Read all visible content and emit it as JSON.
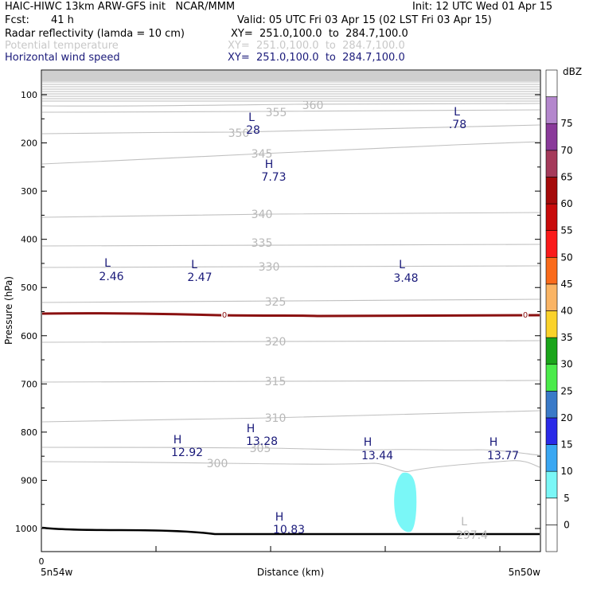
{
  "header": {
    "title": "HAIC-HIWC 13km ARW-GFS init   NCAR/MMM",
    "init": "Init: 12 UTC Wed 01 Apr 15",
    "fcst_label": "Fcst:",
    "fcst_value": "41 h",
    "valid": "Valid: 05 UTC Fri 03 Apr 15 (02 LST Fri 03 Apr 15)",
    "fields": [
      {
        "name": "Radar reflectivity (lamda = 10 cm)",
        "xy": "XY=  251.0,100.0  to  284.7,100.0",
        "color": "#000000"
      },
      {
        "name": "Potential temperature",
        "xy": "XY=  251.0,100.0  to  284.7,100.0",
        "color": "#c8c8c8"
      },
      {
        "name": "Horizontal wind speed",
        "xy": "XY=  251.0,100.0  to  284.7,100.0",
        "color": "#1a1a7a"
      }
    ]
  },
  "chart_data": {
    "type": "cross-section",
    "ylabel": "Pressure (hPa)",
    "xlabel": "Distance (km)",
    "x_tick_label": "0",
    "x_left_label": "5n54w",
    "x_right_label": "5n50w",
    "y_ticks": [
      100,
      200,
      300,
      400,
      500,
      600,
      700,
      800,
      900,
      1000
    ],
    "ylim": [
      1050,
      50
    ],
    "theta_contours": [
      {
        "value": 360,
        "label": "360"
      },
      {
        "value": 355,
        "label": "355"
      },
      {
        "value": 350,
        "label": "350"
      },
      {
        "value": 345,
        "label": "345"
      },
      {
        "value": 340,
        "label": "340"
      },
      {
        "value": 335,
        "label": "335"
      },
      {
        "value": 330,
        "label": "330"
      },
      {
        "value": 325,
        "label": "325"
      },
      {
        "value": 320,
        "label": "320"
      },
      {
        "value": 315,
        "label": "315"
      },
      {
        "value": 310,
        "label": "310"
      },
      {
        "value": 305,
        "label": "305"
      },
      {
        "value": 300,
        "label": "300"
      }
    ],
    "wind_extrema": [
      {
        "type": "L",
        "value": "28"
      },
      {
        "type": "L",
        "value": ".78"
      },
      {
        "type": "H",
        "value": "7.73"
      },
      {
        "type": "L",
        "value": "2.46"
      },
      {
        "type": "L",
        "value": "2.47"
      },
      {
        "type": "L",
        "value": "3.48"
      },
      {
        "type": "H",
        "value": "12.92"
      },
      {
        "type": "H",
        "value": "13.28"
      },
      {
        "type": "H",
        "value": "13.44"
      },
      {
        "type": "H",
        "value": "13.77"
      },
      {
        "type": "H",
        "value": "10.83"
      }
    ],
    "theta_extrema": [
      {
        "type": "L",
        "value": "297.4"
      }
    ],
    "zero_contour_label": "0",
    "colorbar": {
      "units": "dBZ",
      "levels": [
        0,
        5,
        10,
        15,
        20,
        25,
        30,
        35,
        40,
        45,
        50,
        55,
        60,
        65,
        70,
        75
      ],
      "colors": [
        "#ffffff",
        "#ffffff",
        "#7af7f7",
        "#3aa7f2",
        "#2a2ae8",
        "#3a7ac8",
        "#4aeb4a",
        "#1aa51a",
        "#fad22a",
        "#fab464",
        "#fa6a1a",
        "#fa1a1a",
        "#c80a0a",
        "#a50a0a",
        "#a53a5a",
        "#8a3a9a",
        "#b487cd",
        "#ffffff"
      ]
    },
    "colors": {
      "theta": "#c0c0c0",
      "wind": "#1a1a7a",
      "zero_line": "#8a1010",
      "terrain": "#000000",
      "echo": "#7af7f7"
    }
  }
}
